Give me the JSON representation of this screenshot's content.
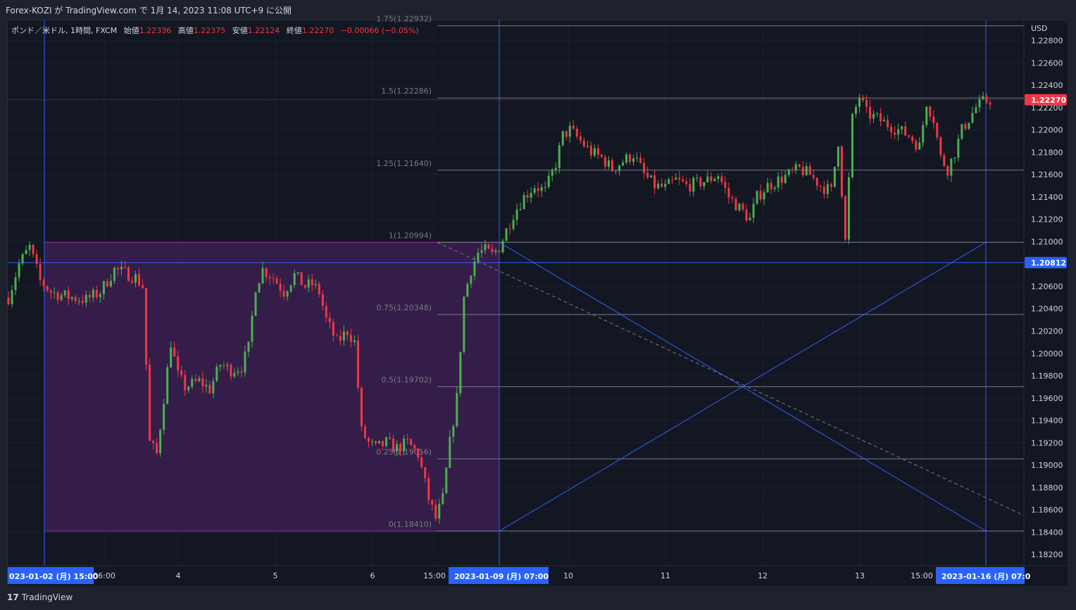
{
  "header": {
    "title": "Forex-KOZI が TradingView.com で 1月 14, 2023 11:08 UTC+9 に公開"
  },
  "legend": {
    "symbol": "ポンド／米ドル, 1時間, FXCM",
    "open_label": "始値",
    "open": "1.22336",
    "high_label": "高値",
    "high": "1.22375",
    "low_label": "安値",
    "low": "1.22124",
    "close_label": "終値",
    "close": "1.22270",
    "change": "−0.00066 (−0.05%)"
  },
  "footer": {
    "brand": "TradingView",
    "brand_icon": "tradingview-logo-icon"
  },
  "colors": {
    "background": "#131722",
    "up": "#26a69a",
    "up_candle": "#4caf50",
    "down": "#f23645",
    "fib_line": "#787b86",
    "blue_line": "#2962ff",
    "rect_fill": "#3b1f4f",
    "rect_border": "#9c27b0",
    "price_tag": "#f23645",
    "crosshair_tag": "#2962ff"
  },
  "chart_data": {
    "type": "candlestick",
    "currency_label": "USD",
    "y_ticks": [
      "1.22800",
      "1.22600",
      "1.22400",
      "1.22200",
      "1.22000",
      "1.21800",
      "1.21600",
      "1.21400",
      "1.21200",
      "1.21000",
      "1.20600",
      "1.20400",
      "1.20200",
      "1.20000",
      "1.19800",
      "1.19600",
      "1.19400",
      "1.19200",
      "1.19000",
      "1.18800",
      "1.18600",
      "1.18400",
      "1.18200"
    ],
    "ylim": [
      1.181,
      1.2298
    ],
    "current_price": "1.22270",
    "crosshair_price": "1.20812",
    "x_ticks": [
      "06:00",
      "4",
      "5",
      "6",
      "15:00",
      "10",
      "11",
      "12",
      "13",
      "15:00"
    ],
    "x_tags": [
      "023-01-02 (月)  15:00",
      "2023-01-09 (月)  07:00",
      "2023-01-16 (月)  07:0"
    ],
    "fib_levels": [
      {
        "label": "1.75(1.22932)",
        "value": 1.22932
      },
      {
        "label": "1.5(1.22286)",
        "value": 1.22286
      },
      {
        "label": "1.25(1.21640)",
        "value": 1.2164
      },
      {
        "label": "1(1.20994)",
        "value": 1.20994
      },
      {
        "label": "0.75(1.20348)",
        "value": 1.20348
      },
      {
        "label": "0.5(1.19702)",
        "value": 1.19702
      },
      {
        "label": "0.25(1.19056)",
        "value": 1.19056
      },
      {
        "label": "0(1.18410)",
        "value": 1.1841
      }
    ],
    "close_path": [
      [
        0,
        1.205
      ],
      [
        3,
        1.208
      ],
      [
        6,
        1.2095
      ],
      [
        9,
        1.2065
      ],
      [
        12,
        1.2055
      ],
      [
        15,
        1.2052
      ],
      [
        18,
        1.205
      ],
      [
        22,
        1.2048
      ],
      [
        26,
        1.2055
      ],
      [
        30,
        1.2075
      ],
      [
        33,
        1.2072
      ],
      [
        36,
        1.2068
      ],
      [
        38,
        1.206
      ],
      [
        40,
        1.192
      ],
      [
        42,
        1.191
      ],
      [
        44,
        1.196
      ],
      [
        46,
        1.201
      ],
      [
        48,
        1.198
      ],
      [
        50,
        1.197
      ],
      [
        54,
        1.1975
      ],
      [
        57,
        1.1968
      ],
      [
        60,
        1.199
      ],
      [
        63,
        1.1985
      ],
      [
        66,
        1.1988
      ],
      [
        68,
        1.2005
      ],
      [
        70,
        1.206
      ],
      [
        72,
        1.2075
      ],
      [
        75,
        1.2068
      ],
      [
        78,
        1.2055
      ],
      [
        81,
        1.207
      ],
      [
        84,
        1.206
      ],
      [
        86,
        1.2062
      ],
      [
        88,
        1.2055
      ],
      [
        90,
        1.203
      ],
      [
        93,
        1.201
      ],
      [
        96,
        1.202
      ],
      [
        98,
        1.201
      ],
      [
        100,
        1.193
      ],
      [
        102,
        1.192
      ],
      [
        104,
        1.1915
      ],
      [
        107,
        1.192
      ],
      [
        110,
        1.1915
      ],
      [
        113,
        1.192
      ],
      [
        116,
        1.191
      ],
      [
        119,
        1.187
      ],
      [
        121,
        1.1852
      ],
      [
        123,
        1.187
      ],
      [
        125,
        1.192
      ],
      [
        127,
        1.196
      ],
      [
        129,
        1.205
      ],
      [
        131,
        1.2075
      ],
      [
        133,
        1.209
      ],
      [
        135,
        1.2092
      ],
      [
        137,
        1.2088
      ],
      [
        139,
        1.2095
      ],
      [
        141,
        1.211
      ],
      [
        143,
        1.2125
      ],
      [
        146,
        1.214
      ],
      [
        149,
        1.215
      ],
      [
        152,
        1.2145
      ],
      [
        155,
        1.217
      ],
      [
        157,
        1.2195
      ],
      [
        159,
        1.22
      ],
      [
        162,
        1.219
      ],
      [
        165,
        1.218
      ],
      [
        168,
        1.2175
      ],
      [
        171,
        1.2165
      ],
      [
        174,
        1.2172
      ],
      [
        177,
        1.2178
      ],
      [
        180,
        1.216
      ],
      [
        183,
        1.215
      ],
      [
        186,
        1.2148
      ],
      [
        189,
        1.2155
      ],
      [
        192,
        1.215
      ],
      [
        195,
        1.2152
      ],
      [
        198,
        1.2155
      ],
      [
        201,
        1.216
      ],
      [
        204,
        1.214
      ],
      [
        207,
        1.213
      ],
      [
        210,
        1.212
      ],
      [
        212,
        1.214
      ],
      [
        215,
        1.215
      ],
      [
        218,
        1.2155
      ],
      [
        221,
        1.216
      ],
      [
        224,
        1.2165
      ],
      [
        227,
        1.216
      ],
      [
        230,
        1.215
      ],
      [
        233,
        1.2145
      ],
      [
        235,
        1.219
      ],
      [
        237,
        1.21
      ],
      [
        239,
        1.221
      ],
      [
        241,
        1.223
      ],
      [
        243,
        1.2215
      ],
      [
        246,
        1.221
      ],
      [
        249,
        1.2205
      ],
      [
        252,
        1.22
      ],
      [
        255,
        1.2195
      ],
      [
        258,
        1.2185
      ],
      [
        260,
        1.2225
      ],
      [
        262,
        1.221
      ],
      [
        264,
        1.2175
      ],
      [
        266,
        1.2165
      ],
      [
        268,
        1.218
      ],
      [
        270,
        1.22
      ],
      [
        272,
        1.221
      ],
      [
        274,
        1.222
      ],
      [
        276,
        1.2225
      ],
      [
        278,
        1.2227
      ]
    ],
    "candle_count": 279,
    "range_box": {
      "from_value": 1.1841,
      "to_value": 1.20994
    },
    "xlabel": "",
    "ylabel": "",
    "grid": true,
    "legend": "top-left"
  }
}
